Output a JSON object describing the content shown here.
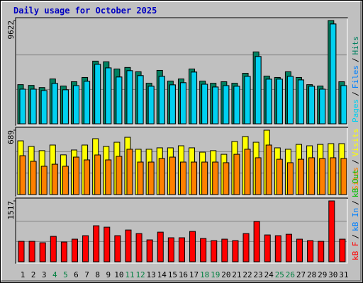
{
  "chart_data": {
    "type": "bar",
    "title": "Daily usage for October 2025",
    "categories": [
      1,
      2,
      3,
      4,
      5,
      6,
      7,
      8,
      9,
      10,
      11,
      12,
      13,
      14,
      15,
      16,
      17,
      18,
      19,
      20,
      21,
      22,
      23,
      24,
      25,
      26,
      27,
      28,
      29,
      30,
      31
    ],
    "weekend": [
      false,
      false,
      false,
      true,
      true,
      false,
      false,
      false,
      false,
      false,
      true,
      true,
      false,
      false,
      false,
      false,
      false,
      true,
      true,
      false,
      false,
      false,
      false,
      false,
      true,
      true,
      false,
      false,
      false,
      false,
      false
    ],
    "weekend_color": "#008040",
    "separator": "/",
    "panels": [
      {
        "ylim": [
          0,
          9622
        ],
        "yticks": [
          9622
        ],
        "series": [
          {
            "name": "Hits",
            "color": "#008060",
            "values": [
              3650,
              3580,
              3380,
              4180,
              3520,
              3920,
              4320,
              5840,
              5780,
              5110,
              5250,
              4850,
              3780,
              4980,
              3980,
              4180,
              5110,
              3980,
              3780,
              3920,
              3780,
              4710,
              6700,
              4450,
              4320,
              4850,
              4320,
              3650,
              3520,
              9622,
              3920
            ]
          },
          {
            "name": "Files",
            "color": "#0080ff",
            "values": [
              3230,
              3230,
              3100,
              3760,
              3170,
              3560,
              3960,
              5540,
              5210,
              4360,
              4950,
              4490,
              3500,
              4420,
              3630,
              3830,
              4820,
              3690,
              3430,
              3560,
              3500,
              4420,
              6270,
              4160,
              4160,
              4420,
              4090,
              3500,
              3230,
              9300,
              3560
            ]
          },
          {
            "name": "Pages",
            "color": "#00d0f0",
            "values": [
              3230,
              3230,
              3100,
              3760,
              3170,
              3560,
              3960,
              5540,
              5210,
              4360,
              4950,
              4490,
              3500,
              4420,
              3630,
              3830,
              4820,
              3690,
              3430,
              3560,
              3500,
              4420,
              6270,
              4160,
              4160,
              4420,
              4090,
              3500,
              3230,
              9300,
              3560
            ]
          }
        ]
      },
      {
        "ylim": [
          0,
          689
        ],
        "yticks": [
          689
        ],
        "series": [
          {
            "name": "Visits",
            "color": "#ffff00",
            "values": [
              575,
              515,
              470,
              530,
              425,
              477,
              530,
              598,
              515,
              560,
              613,
              485,
              485,
              500,
              500,
              522,
              500,
              454,
              470,
              431,
              568,
              621,
              560,
              689,
              500,
              485,
              537,
              522,
              537,
              545,
              545
            ]
          },
          {
            "name": "Sites",
            "color": "#ff8000",
            "values": [
              416,
              356,
              303,
              325,
              303,
              401,
              371,
              424,
              371,
              409,
              485,
              348,
              348,
              386,
              401,
              348,
              348,
              348,
              348,
              341,
              431,
              485,
              394,
              530,
              378,
              341,
              378,
              394,
              386,
              394,
              386
            ]
          }
        ]
      },
      {
        "ylim": [
          0,
          1517
        ],
        "yticks": [
          1517
        ],
        "series": [
          {
            "name": "kB F",
            "color": "#ff0000",
            "values": [
              510,
              510,
              475,
              634,
              493,
              564,
              651,
              898,
              863,
              651,
              792,
              704,
              546,
              739,
              599,
              599,
              757,
              581,
              528,
              564,
              528,
              704,
              1004,
              669,
              651,
              686,
              564,
              528,
              510,
              1517,
              564
            ]
          }
        ],
        "extra_legend": [
          {
            "name": "kB In",
            "color": "#0080ff"
          },
          {
            "name": "kB Out",
            "color": "#00c000"
          }
        ]
      }
    ]
  }
}
